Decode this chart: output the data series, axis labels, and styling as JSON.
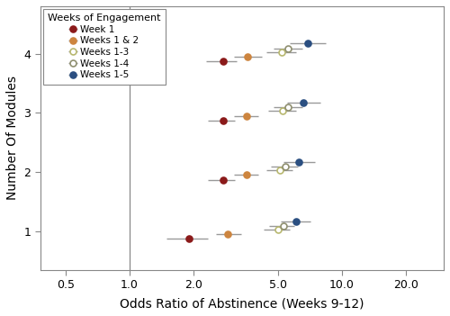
{
  "xlabel": "Odds Ratio of Abstinence (Weeks 9-12)",
  "ylabel": "Number Of Modules",
  "legend_title": "Weeks of Engagement",
  "series": [
    {
      "label": "Week 1",
      "color": "#8B1A1A",
      "fillstyle": "full",
      "points": [
        {
          "modules": 1,
          "or": 1.9,
          "lo": 1.5,
          "hi": 2.35
        },
        {
          "modules": 2,
          "or": 2.75,
          "lo": 2.35,
          "hi": 3.15
        },
        {
          "modules": 3,
          "or": 2.75,
          "lo": 2.35,
          "hi": 3.15
        },
        {
          "modules": 4,
          "or": 2.75,
          "lo": 2.3,
          "hi": 3.2
        }
      ]
    },
    {
      "label": "Weeks 1 & 2",
      "color": "#CD853F",
      "fillstyle": "full",
      "points": [
        {
          "modules": 1,
          "or": 2.9,
          "lo": 2.55,
          "hi": 3.35
        },
        {
          "modules": 2,
          "or": 3.55,
          "lo": 3.1,
          "hi": 4.05
        },
        {
          "modules": 3,
          "or": 3.55,
          "lo": 3.1,
          "hi": 4.05
        },
        {
          "modules": 4,
          "or": 3.6,
          "lo": 3.1,
          "hi": 4.2
        }
      ]
    },
    {
      "label": "Weeks 1-3",
      "color": "#B8B870",
      "fillstyle": "none",
      "points": [
        {
          "modules": 1,
          "or": 5.0,
          "lo": 4.3,
          "hi": 5.7
        },
        {
          "modules": 2,
          "or": 5.1,
          "lo": 4.4,
          "hi": 5.85
        },
        {
          "modules": 3,
          "or": 5.25,
          "lo": 4.5,
          "hi": 6.1
        },
        {
          "modules": 4,
          "or": 5.2,
          "lo": 4.4,
          "hi": 6.1
        }
      ]
    },
    {
      "label": "Weeks 1-4",
      "color": "#909070",
      "fillstyle": "none",
      "points": [
        {
          "modules": 1,
          "or": 5.3,
          "lo": 4.55,
          "hi": 6.0
        },
        {
          "modules": 2,
          "or": 5.4,
          "lo": 4.65,
          "hi": 6.2
        },
        {
          "modules": 3,
          "or": 5.6,
          "lo": 4.75,
          "hi": 6.5
        },
        {
          "modules": 4,
          "or": 5.6,
          "lo": 4.75,
          "hi": 6.55
        }
      ]
    },
    {
      "label": "Weeks 1-5",
      "color": "#2B4F81",
      "fillstyle": "full",
      "points": [
        {
          "modules": 1,
          "or": 6.1,
          "lo": 5.15,
          "hi": 7.1
        },
        {
          "modules": 2,
          "or": 6.3,
          "lo": 5.3,
          "hi": 7.45
        },
        {
          "modules": 3,
          "or": 6.6,
          "lo": 5.5,
          "hi": 7.95
        },
        {
          "modules": 4,
          "or": 6.9,
          "lo": 5.7,
          "hi": 8.4
        }
      ]
    }
  ],
  "xlim_log": [
    -0.42,
    1.48
  ],
  "xticks": [
    0.5,
    1.0,
    2.0,
    5.0,
    10.0,
    20.0
  ],
  "xtick_labels": [
    "0.5",
    "1.0",
    "2.0",
    "5.0",
    "10.0",
    "20.0"
  ],
  "ylim": [
    0.35,
    4.8
  ],
  "yticks": [
    1,
    2,
    3,
    4
  ],
  "vline_x": 1.0,
  "y_offsets": [
    -0.13,
    -0.05,
    0.03,
    0.09,
    0.17
  ],
  "markersize": 5,
  "elinewidth": 1.0,
  "capsize": 0
}
